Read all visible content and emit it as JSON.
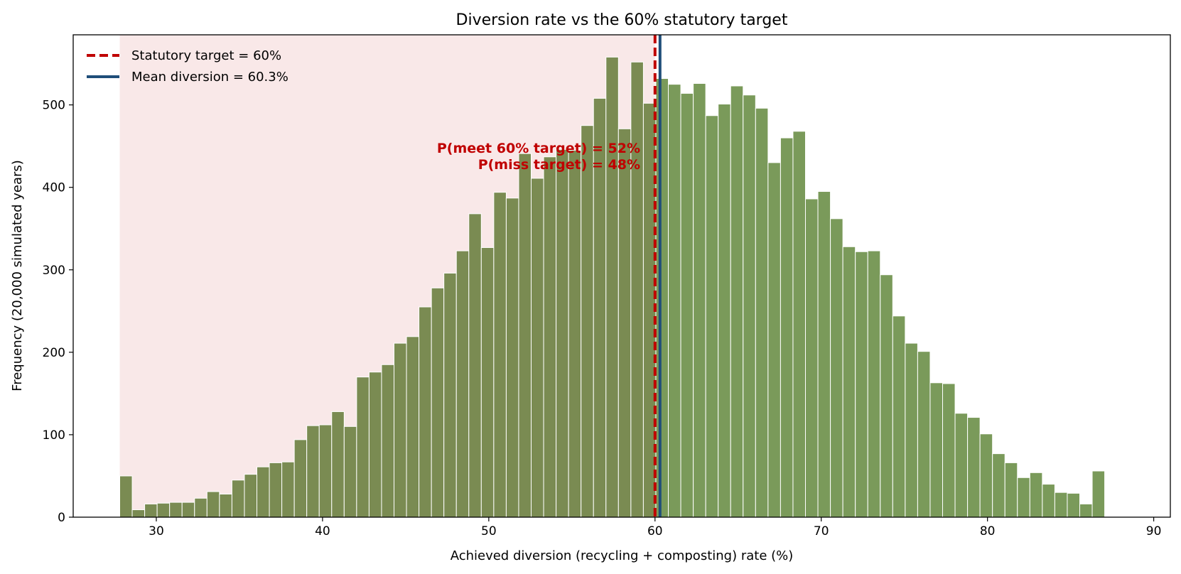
{
  "chart_data": {
    "type": "bar",
    "title": "Diversion rate vs the 60% statutory target",
    "xlabel": "Achieved diversion (recycling + composting) rate  (%)",
    "ylabel": "Frequency  (20,000 simulated years)",
    "xlim": [
      25,
      91
    ],
    "ylim": [
      0,
      585
    ],
    "xticks": [
      "30",
      "40",
      "50",
      "60",
      "70",
      "80",
      "90"
    ],
    "yticks": [
      "0",
      "100",
      "200",
      "300",
      "400",
      "500"
    ],
    "bin_start": 27.8,
    "bin_width": 0.75,
    "counts": [
      50,
      9,
      16,
      17,
      18,
      18,
      23,
      31,
      28,
      45,
      52,
      61,
      66,
      67,
      94,
      111,
      112,
      128,
      110,
      170,
      176,
      185,
      211,
      219,
      255,
      278,
      296,
      323,
      368,
      327,
      394,
      387,
      441,
      411,
      437,
      446,
      445,
      475,
      508,
      558,
      471,
      552,
      502,
      532,
      525,
      514,
      526,
      487,
      501,
      523,
      512,
      496,
      430,
      460,
      468,
      386,
      395,
      362,
      328,
      322,
      323,
      294,
      244,
      211,
      201,
      163,
      162,
      126,
      121,
      101,
      77,
      66,
      48,
      54,
      40,
      30,
      29,
      16,
      56
    ],
    "target": 60,
    "mean": 60.3,
    "miss_region": [
      27.8,
      60
    ],
    "legend": {
      "position": "upper-left",
      "items": [
        {
          "label": "Statutory target = 60%",
          "style": "dashed",
          "color": "#c00000"
        },
        {
          "label": "Mean diversion = 60.3%",
          "style": "solid",
          "color": "#1f4e79"
        }
      ]
    },
    "annotations": [
      "P(meet 60% target) = 52%",
      "P(miss target) = 48%"
    ],
    "colors": {
      "bar_below": "#7a8b52",
      "bar_above": "#7a9a5a",
      "miss_shade": "#f9e8e8",
      "target_line": "#c00000",
      "mean_line": "#1f4e79",
      "annotation": "#c00000"
    },
    "grid": false
  }
}
